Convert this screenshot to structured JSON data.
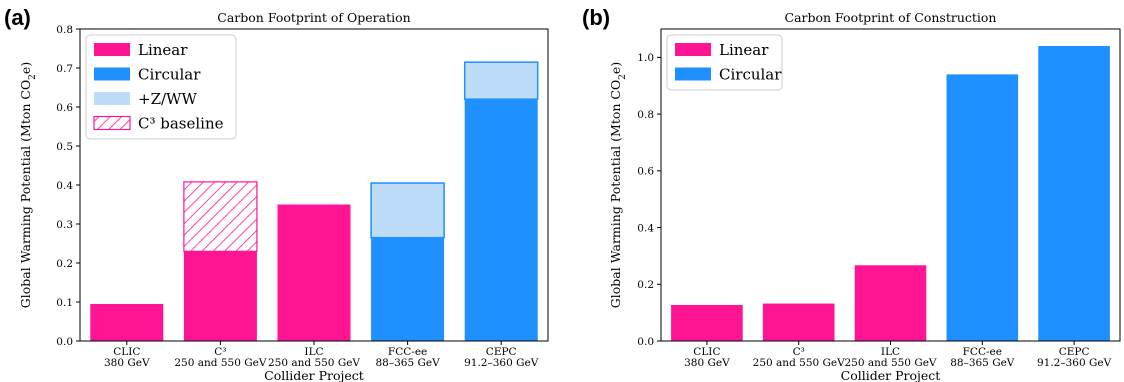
{
  "chart_data": [
    {
      "panel": "(a)",
      "type": "bar",
      "title": "Carbon Footprint of Operation",
      "xlabel": "Collider Project",
      "ylabel": "Global Warming Potential (Mton CO",
      "ylabel_sub_2": "2",
      "ylabel_tail": "e)",
      "ylim": [
        0,
        0.8
      ],
      "yticks": [
        "0.0",
        "0.1",
        "0.2",
        "0.3",
        "0.4",
        "0.5",
        "0.6",
        "0.7",
        "0.8"
      ],
      "categories": [
        {
          "name": "CLIC",
          "sub": "380 GeV"
        },
        {
          "name": "C³",
          "sub": "250 and 550 GeV"
        },
        {
          "name": "ILC",
          "sub": "250 and 550 GeV"
        },
        {
          "name": "FCC-ee",
          "sub": "88–365 GeV"
        },
        {
          "name": "CEPC",
          "sub": "91.2–360 GeV"
        }
      ],
      "series": [
        {
          "name": "Linear",
          "color": "#ff1493",
          "values": [
            0.095,
            0.23,
            0.35,
            null,
            null
          ]
        },
        {
          "name": "Circular",
          "color": "#1e90ff",
          "values": [
            null,
            null,
            null,
            0.265,
            0.62
          ]
        },
        {
          "name": "+Z/WW",
          "color": "#bcdcf8",
          "stacked_on": "Circular",
          "values": [
            null,
            null,
            null,
            0.14,
            0.095
          ]
        },
        {
          "name": "C³ baseline",
          "color": "#ff1493",
          "pattern": "hatch",
          "stacked_on": "Linear",
          "values": [
            null,
            0.178,
            null,
            null,
            null
          ]
        }
      ],
      "legend": [
        "Linear",
        "Circular",
        "+Z/WW",
        "C³ baseline"
      ],
      "legend_position": "top-left"
    },
    {
      "panel": "(b)",
      "type": "bar",
      "title": "Carbon Footprint of Construction",
      "xlabel": "Collider Project",
      "ylabel": "Global Warming Potential (Mton CO",
      "ylabel_sub_2": "2",
      "ylabel_tail": "e)",
      "ylim": [
        0,
        1.1
      ],
      "yticks": [
        "0.0",
        "0.2",
        "0.4",
        "0.6",
        "0.8",
        "1.0"
      ],
      "categories": [
        {
          "name": "CLIC",
          "sub": "380 GeV"
        },
        {
          "name": "C³",
          "sub": "250 and 550 GeV"
        },
        {
          "name": "ILC",
          "sub": "250 and 550 GeV"
        },
        {
          "name": "FCC-ee",
          "sub": "88–365 GeV"
        },
        {
          "name": "CEPC",
          "sub": "91.2–360 GeV"
        }
      ],
      "series": [
        {
          "name": "Linear",
          "color": "#ff1493",
          "values": [
            0.127,
            0.132,
            0.267,
            null,
            null
          ]
        },
        {
          "name": "Circular",
          "color": "#1e90ff",
          "values": [
            null,
            null,
            null,
            0.94,
            1.04
          ]
        }
      ],
      "legend": [
        "Linear",
        "Circular"
      ],
      "legend_position": "top-left"
    }
  ]
}
